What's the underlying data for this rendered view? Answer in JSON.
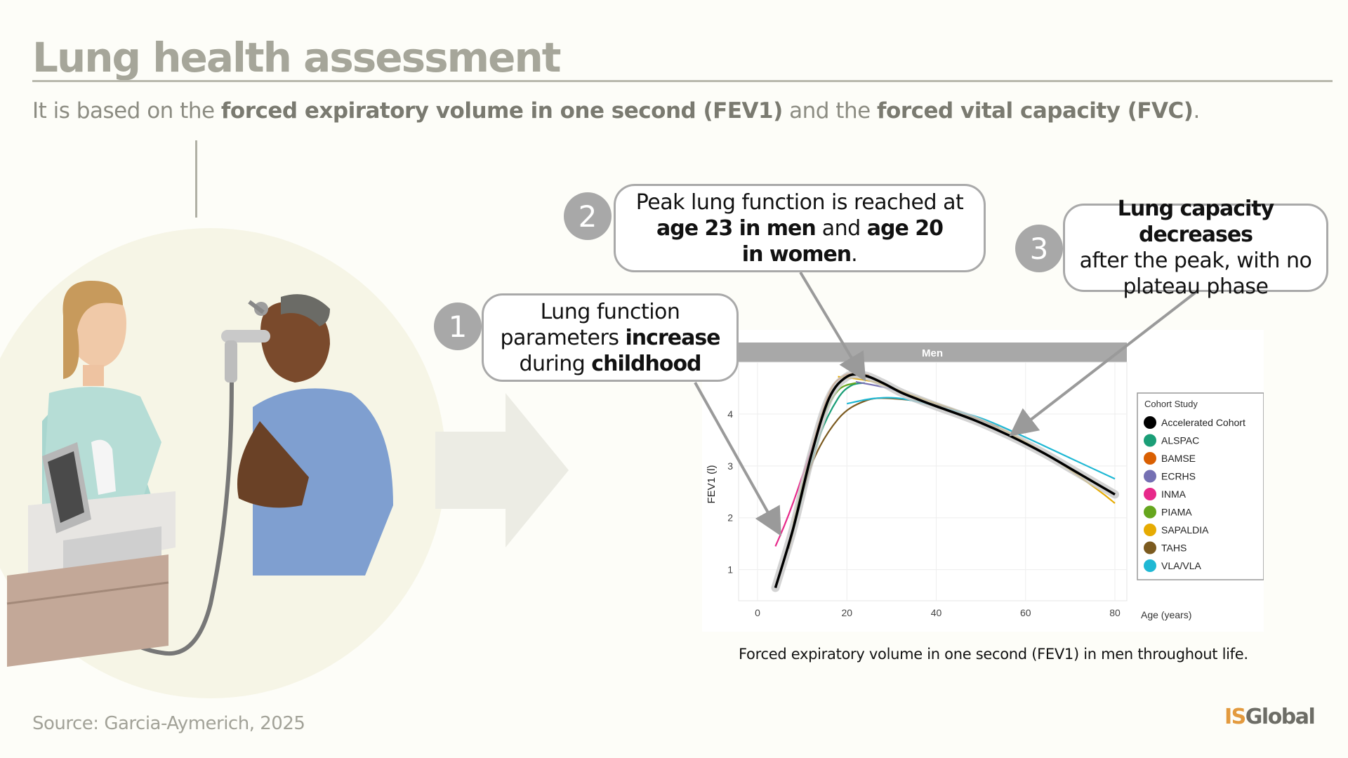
{
  "header": {
    "title": "Lung health assessment",
    "subtitle_pre": "It is based on the ",
    "subtitle_b1": "forced expiratory volume in one second (FEV1)",
    "subtitle_mid": " and the ",
    "subtitle_b2": "forced vital capacity (FVC)",
    "subtitle_end": "."
  },
  "callouts": {
    "c1": {
      "number": "1",
      "line1": "Lung function",
      "line2a": "parameters ",
      "line2b": "increase",
      "line3a": "during ",
      "line3b": "childhood"
    },
    "c2": {
      "number": "2",
      "line1": "Peak lung function is reached at",
      "line2a": "age 23 in men",
      "line2b": " and ",
      "line2c": "age 20",
      "line3a": "in women",
      "line3b": "."
    },
    "c3": {
      "number": "3",
      "line1": "Lung capacity decreases",
      "line2": "after the peak, with no",
      "line3": "plateau phase"
    }
  },
  "chart_data": {
    "type": "line",
    "panel_label": "Men",
    "ylabel": "FEV1 (l)",
    "xlabel": "Age (years)",
    "xlim": [
      0,
      80
    ],
    "ylim": [
      0.4,
      5.0
    ],
    "x_ticks": [
      0,
      20,
      40,
      60,
      80
    ],
    "y_ticks": [
      1,
      2,
      3,
      4
    ],
    "grid": true,
    "legend_title": "Cohort Study",
    "legend_position": "right",
    "series": [
      {
        "name": "Accelerated Cohort",
        "color": "#000000",
        "x": [
          4,
          8,
          12,
          16,
          20,
          24,
          28,
          32,
          36,
          40,
          48,
          56,
          64,
          72,
          80
        ],
        "y": [
          0.65,
          1.8,
          3.2,
          4.3,
          4.72,
          4.74,
          4.6,
          4.42,
          4.28,
          4.15,
          3.9,
          3.6,
          3.25,
          2.85,
          2.45
        ]
      },
      {
        "name": "ALSPAC",
        "color": "#1b9e77",
        "x": [
          7,
          10,
          14,
          18,
          21,
          24
        ],
        "y": [
          1.4,
          2.4,
          3.6,
          4.3,
          4.55,
          4.6
        ]
      },
      {
        "name": "BAMSE",
        "color": "#d95f02",
        "x": [
          8,
          12,
          16,
          19,
          22,
          25
        ],
        "y": [
          1.9,
          3.3,
          4.4,
          4.72,
          4.78,
          4.75
        ]
      },
      {
        "name": "ECRHS",
        "color": "#7570b3",
        "x": [
          22,
          30,
          40,
          50,
          54
        ],
        "y": [
          4.62,
          4.48,
          4.2,
          3.88,
          3.72
        ]
      },
      {
        "name": "INMA",
        "color": "#e7298a",
        "x": [
          4,
          6,
          8,
          10,
          12,
          14
        ],
        "y": [
          1.45,
          1.85,
          2.3,
          2.8,
          3.3,
          3.75
        ]
      },
      {
        "name": "PIAMA",
        "color": "#66a61e",
        "x": [
          7,
          10,
          14,
          18,
          22
        ],
        "y": [
          1.45,
          2.6,
          3.8,
          4.45,
          4.6
        ]
      },
      {
        "name": "SAPALDIA",
        "color": "#e6ab02",
        "x": [
          18,
          26,
          36,
          46,
          56,
          66,
          76,
          80
        ],
        "y": [
          4.72,
          4.62,
          4.32,
          4.02,
          3.65,
          3.15,
          2.55,
          2.28
        ]
      },
      {
        "name": "TAHS",
        "color": "#7b5a1f",
        "x": [
          7,
          12,
          18,
          24,
          30,
          40,
          50,
          54
        ],
        "y": [
          1.4,
          3.0,
          3.9,
          4.25,
          4.3,
          4.18,
          3.88,
          3.75
        ]
      },
      {
        "name": "VLA/VLA",
        "color": "#1fb8d4",
        "x": [
          20,
          26,
          32,
          40,
          50,
          60,
          70,
          80
        ],
        "y": [
          4.2,
          4.3,
          4.3,
          4.15,
          3.92,
          3.55,
          3.15,
          2.75
        ]
      }
    ]
  },
  "caption": "Forced expiratory volume in one second (FEV1) in men throughout life.",
  "footer": {
    "source": "Source: Garcia-Aymerich, 2025",
    "logo_is": "IS",
    "logo_global": "Global"
  },
  "colors": {
    "title_gray": "#a6a69a",
    "callout_border": "#a9a9a9",
    "number_fill": "#a8a8a8",
    "logo_orange": "#e39a3e"
  }
}
